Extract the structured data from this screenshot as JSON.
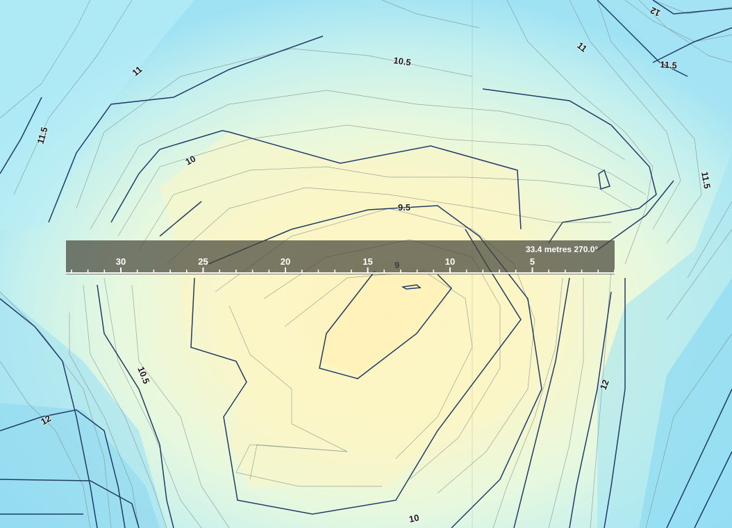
{
  "map": {
    "contour_interval_m": 0.5,
    "depth_colors": {
      "shallow": "#fdf5c2",
      "mid": "#e4f8e0",
      "deep": "#a8e6f5",
      "deepest": "#8fdcf3",
      "major_contour": "#1f3b66",
      "minor_contour": "#7b8a8a"
    },
    "contour_labels": [
      {
        "text": "12",
        "rotation": 30
      },
      {
        "text": "11",
        "rotation": 40
      },
      {
        "text": "11.5",
        "rotation": -74
      },
      {
        "text": "10.5",
        "rotation": 8
      },
      {
        "text": "11",
        "rotation": 38
      },
      {
        "text": "11.5",
        "rotation": 4
      },
      {
        "text": "10",
        "rotation": -28
      },
      {
        "text": "11.5",
        "rotation": 80
      },
      {
        "text": "9.5",
        "rotation": 0
      },
      {
        "text": "9",
        "rotation": 0
      },
      {
        "text": "10.5",
        "rotation": 68
      },
      {
        "text": "12",
        "rotation": -70
      },
      {
        "text": "12",
        "rotation": -25
      },
      {
        "text": "10",
        "rotation": -12
      }
    ]
  },
  "ruler": {
    "readout": "33.4 metres  270.0°",
    "distance_m": 33.4,
    "bearing_deg": 270.0,
    "tick_labels": [
      "30",
      "25",
      "20",
      "15",
      "10",
      "5"
    ]
  }
}
